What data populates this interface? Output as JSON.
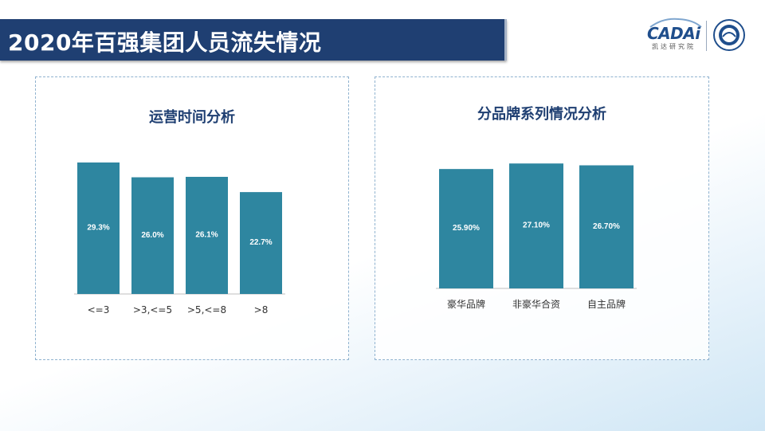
{
  "header": {
    "title": "2020年百强集团人员流失情况"
  },
  "logo": {
    "name": "CADAi",
    "sub": "凯达研究院"
  },
  "colors": {
    "header_bg": "#1f3f72",
    "bar": "#2e86a0",
    "title_text": "#1f3f72"
  },
  "chart_data": [
    {
      "type": "bar",
      "title": "运营时间分析",
      "categories": [
        "<=3",
        ">3,<=5",
        ">5,<=8",
        ">8"
      ],
      "values": [
        29.3,
        26.0,
        26.1,
        22.7
      ],
      "value_labels": [
        "29.3%",
        "26.0%",
        "26.1%",
        "22.7%"
      ],
      "xlabel": "",
      "ylabel": "",
      "ylim": [
        0,
        30
      ],
      "grid": false
    },
    {
      "type": "bar",
      "title": "分品牌系列情况分析",
      "categories": [
        "豪华品牌",
        "非豪华合资",
        "自主品牌"
      ],
      "values": [
        25.9,
        27.1,
        26.7
      ],
      "value_labels": [
        "25.90%",
        "27.10%",
        "26.70%"
      ],
      "xlabel": "",
      "ylabel": "",
      "ylim": [
        0,
        28
      ],
      "grid": false
    }
  ]
}
